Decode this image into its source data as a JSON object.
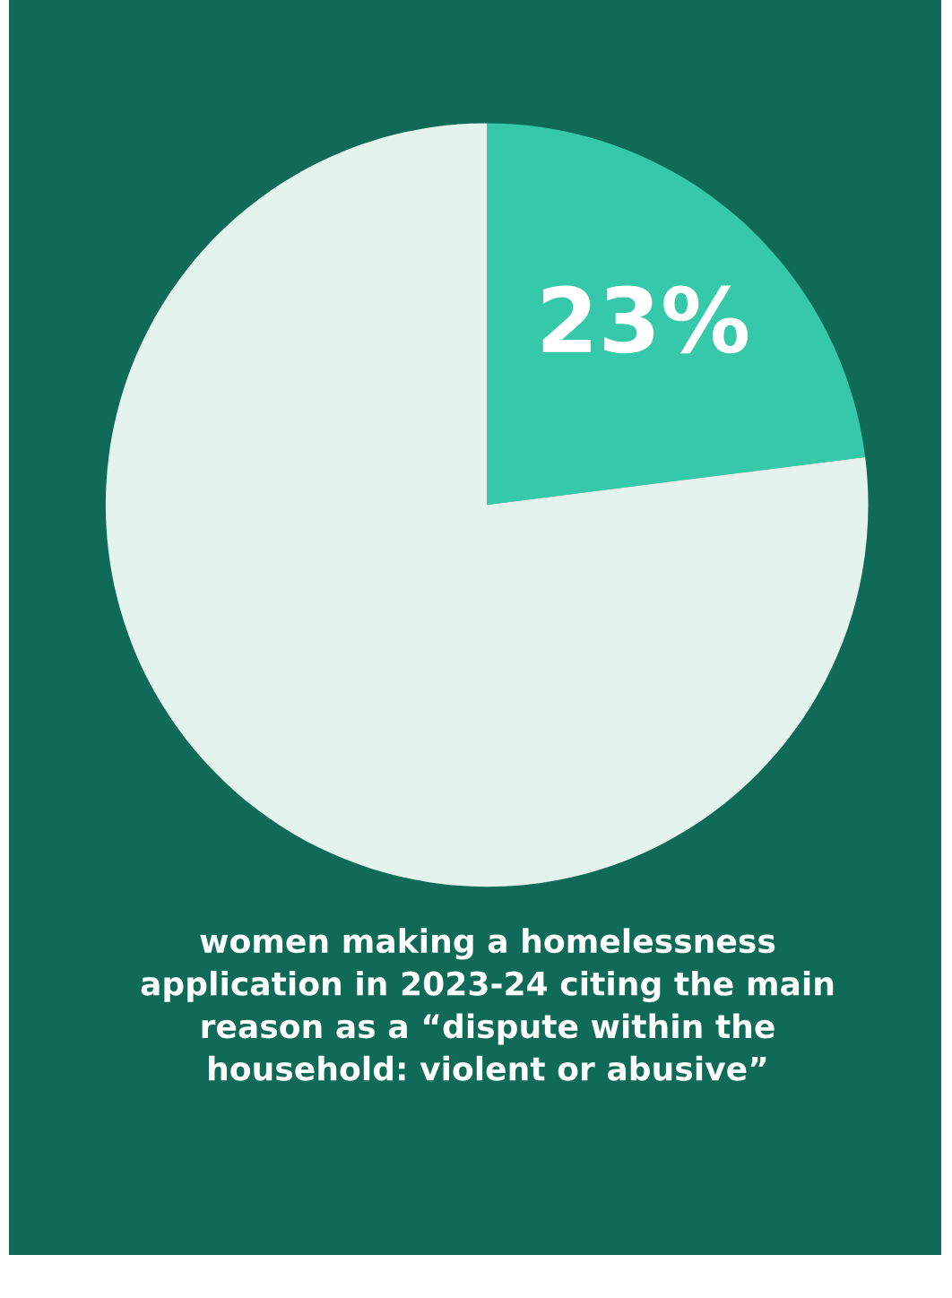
{
  "chart_data": {
    "type": "pie",
    "categories": [
      null,
      null
    ],
    "values": [
      23,
      77
    ],
    "colors": [
      "#35c8a9",
      "#e4f3ee"
    ],
    "value_labels": [
      "23%",
      null
    ],
    "annotations": [
      "women making a homelessness\napplication in 2023-24 citing the main\nreason as a “dispute within the\nhousehold: violent or abusive”"
    ]
  }
}
